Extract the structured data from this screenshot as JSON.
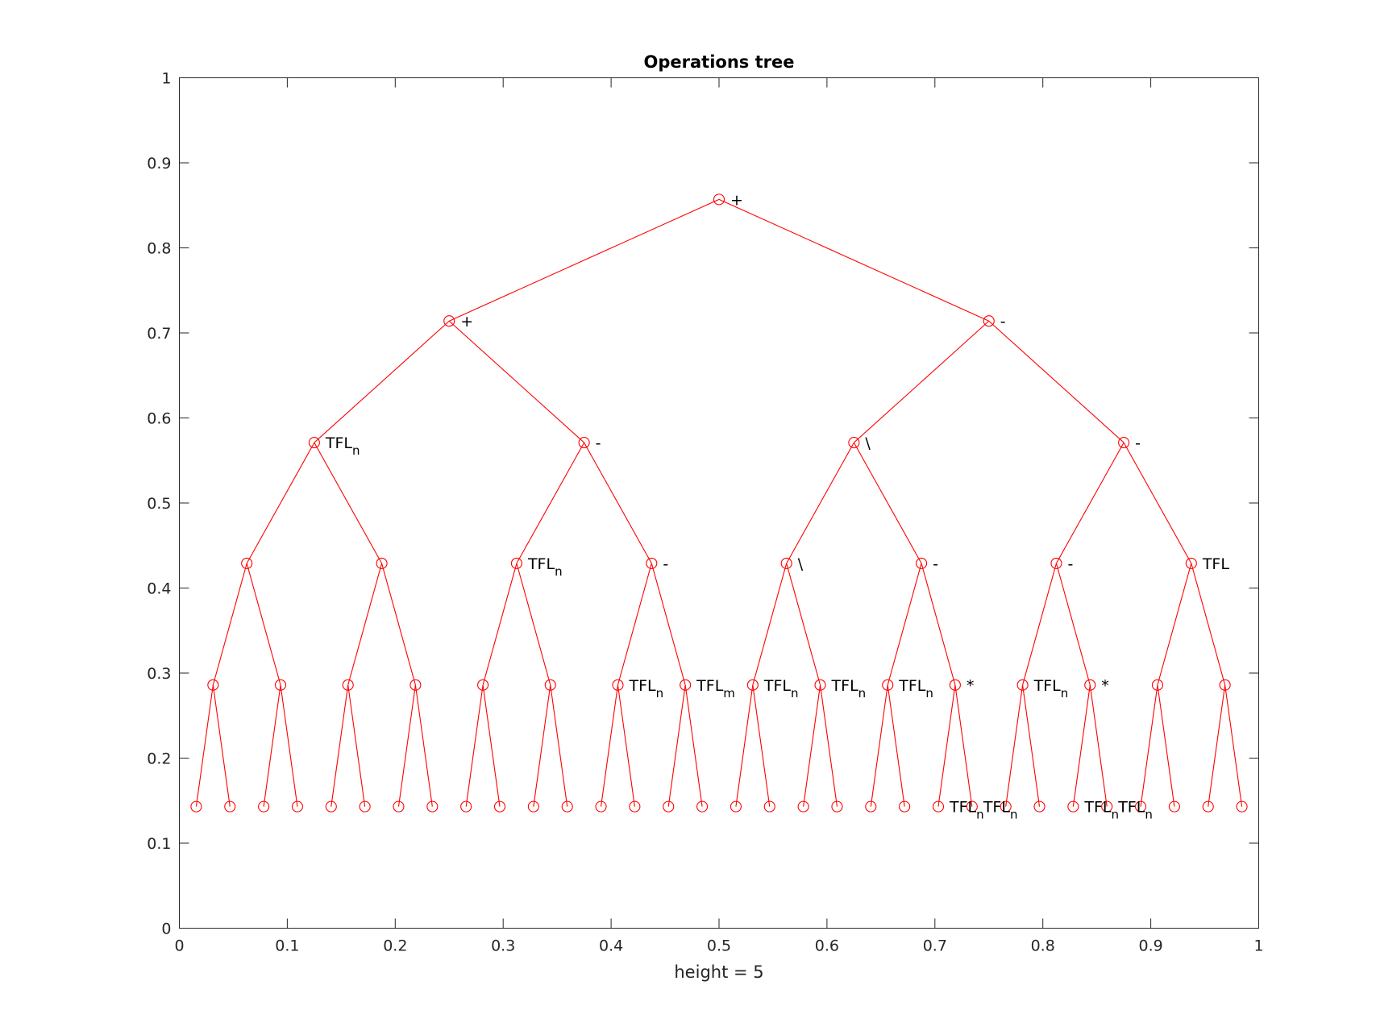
{
  "chart_data": {
    "type": "scatter",
    "title": "Operations tree",
    "xlabel": "height = 5",
    "ylabel": "",
    "xlim": [
      0,
      1
    ],
    "ylim": [
      0,
      1
    ],
    "xticks": [
      "0",
      "0.1",
      "0.2",
      "0.3",
      "0.4",
      "0.5",
      "0.6",
      "0.7",
      "0.8",
      "0.9",
      "1"
    ],
    "yticks": [
      "0",
      "0.1",
      "0.2",
      "0.3",
      "0.4",
      "0.5",
      "0.6",
      "0.7",
      "0.8",
      "0.9",
      "1"
    ],
    "grid": false,
    "legend": "none",
    "series_color": "#ff0000",
    "depth_y": [
      0.857,
      0.714,
      0.571,
      0.429,
      0.286,
      0.143
    ],
    "labels": [
      {
        "depth": 0,
        "index": 0,
        "text": "+",
        "sub": ""
      },
      {
        "depth": 1,
        "index": 0,
        "text": "+",
        "sub": ""
      },
      {
        "depth": 1,
        "index": 1,
        "text": "-",
        "sub": ""
      },
      {
        "depth": 2,
        "index": 0,
        "text": "TFL",
        "sub": "n"
      },
      {
        "depth": 2,
        "index": 1,
        "text": "-",
        "sub": ""
      },
      {
        "depth": 2,
        "index": 2,
        "text": "\\",
        "sub": ""
      },
      {
        "depth": 2,
        "index": 3,
        "text": "-",
        "sub": ""
      },
      {
        "depth": 3,
        "index": 2,
        "text": "TFL",
        "sub": "n"
      },
      {
        "depth": 3,
        "index": 3,
        "text": "-",
        "sub": ""
      },
      {
        "depth": 3,
        "index": 4,
        "text": "\\",
        "sub": ""
      },
      {
        "depth": 3,
        "index": 5,
        "text": "-",
        "sub": ""
      },
      {
        "depth": 3,
        "index": 6,
        "text": "-",
        "sub": ""
      },
      {
        "depth": 3,
        "index": 7,
        "text": "TFL",
        "sub": ""
      },
      {
        "depth": 4,
        "index": 6,
        "text": "TFL",
        "sub": "n"
      },
      {
        "depth": 4,
        "index": 7,
        "text": "TFL",
        "sub": "m"
      },
      {
        "depth": 4,
        "index": 8,
        "text": "TFL",
        "sub": "n"
      },
      {
        "depth": 4,
        "index": 9,
        "text": "TFL",
        "sub": "n"
      },
      {
        "depth": 4,
        "index": 10,
        "text": "TFL",
        "sub": "n"
      },
      {
        "depth": 4,
        "index": 11,
        "text": "*",
        "sub": ""
      },
      {
        "depth": 4,
        "index": 12,
        "text": "TFL",
        "sub": "n"
      },
      {
        "depth": 4,
        "index": 13,
        "text": "*",
        "sub": ""
      },
      {
        "depth": 5,
        "index": 22,
        "text": "TFL",
        "sub": "n"
      },
      {
        "depth": 5,
        "index": 23,
        "text": "TFL",
        "sub": "n"
      },
      {
        "depth": 5,
        "index": 26,
        "text": "TFL",
        "sub": "n"
      },
      {
        "depth": 5,
        "index": 27,
        "text": "TFL",
        "sub": "n"
      }
    ]
  }
}
